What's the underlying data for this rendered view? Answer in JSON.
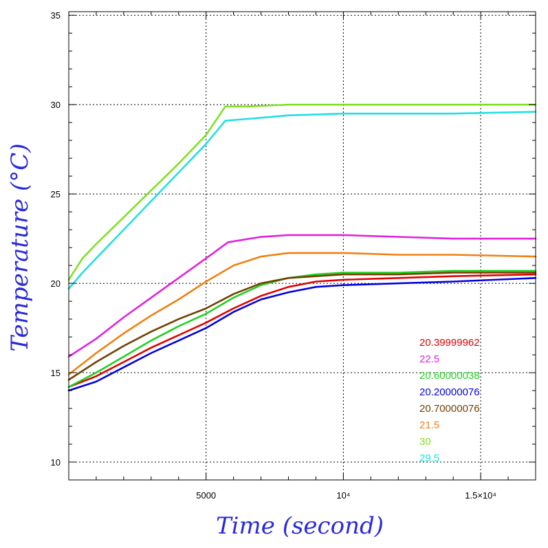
{
  "chart_data": {
    "type": "line",
    "title": "",
    "xlabel": "Time (second)",
    "ylabel": "Temperature (°C)",
    "xlim": [
      0,
      17000
    ],
    "ylim": [
      9,
      35.2
    ],
    "grid": true,
    "legend_placement": "bottom-right",
    "x_ticks": [
      {
        "value": 5000,
        "label": "5000"
      },
      {
        "value": 10000,
        "label": "10⁴"
      },
      {
        "value": 15000,
        "label": "1.5×10⁴"
      }
    ],
    "y_ticks": [
      {
        "value": 10,
        "label": "10"
      },
      {
        "value": 15,
        "label": "15"
      },
      {
        "value": 20,
        "label": "20"
      },
      {
        "value": 25,
        "label": "25"
      },
      {
        "value": 30,
        "label": "30"
      },
      {
        "value": 35,
        "label": "35"
      }
    ],
    "series": [
      {
        "name": "20.39999962",
        "color": "#e00000",
        "x": [
          0,
          1000,
          2000,
          3000,
          4000,
          5000,
          6000,
          7000,
          8000,
          9000,
          10000,
          12000,
          14000,
          17000
        ],
        "y": [
          14.2,
          14.8,
          15.6,
          16.4,
          17.1,
          17.8,
          18.6,
          19.3,
          19.8,
          20.1,
          20.2,
          20.3,
          20.4,
          20.5
        ]
      },
      {
        "name": "22.5",
        "color": "#e020e0",
        "x": [
          0,
          1000,
          2000,
          3000,
          4000,
          5000,
          5800,
          7000,
          8000,
          10000,
          12000,
          14000,
          17000
        ],
        "y": [
          15.9,
          16.9,
          18.1,
          19.2,
          20.3,
          21.4,
          22.3,
          22.6,
          22.7,
          22.7,
          22.6,
          22.5,
          22.5
        ]
      },
      {
        "name": "20.60000038",
        "color": "#20d020",
        "x": [
          0,
          1000,
          2000,
          3000,
          4000,
          5000,
          6000,
          7000,
          8000,
          9000,
          10000,
          12000,
          14000,
          17000
        ],
        "y": [
          14.2,
          15.0,
          15.9,
          16.8,
          17.6,
          18.3,
          19.2,
          19.9,
          20.3,
          20.5,
          20.6,
          20.6,
          20.7,
          20.7
        ]
      },
      {
        "name": "20.20000076",
        "color": "#0000e0",
        "x": [
          0,
          1000,
          2000,
          3000,
          4000,
          5000,
          6000,
          7000,
          8000,
          9000,
          10000,
          12000,
          14000,
          17000
        ],
        "y": [
          14.0,
          14.5,
          15.3,
          16.1,
          16.8,
          17.5,
          18.4,
          19.1,
          19.5,
          19.8,
          19.9,
          20.0,
          20.1,
          20.3
        ]
      },
      {
        "name": "20.70000076",
        "color": "#704000",
        "x": [
          0,
          1000,
          2000,
          3000,
          4000,
          5000,
          6000,
          7000,
          8000,
          9000,
          10000,
          12000,
          14000,
          17000
        ],
        "y": [
          14.6,
          15.6,
          16.5,
          17.3,
          18.0,
          18.6,
          19.4,
          20.0,
          20.3,
          20.4,
          20.5,
          20.5,
          20.6,
          20.6
        ]
      },
      {
        "name": "21.5",
        "color": "#f08010",
        "x": [
          0,
          1000,
          2000,
          3000,
          4000,
          5000,
          6000,
          7000,
          8000,
          9000,
          10000,
          12000,
          14000,
          17000
        ],
        "y": [
          14.9,
          16.1,
          17.2,
          18.2,
          19.1,
          20.1,
          21.0,
          21.5,
          21.7,
          21.7,
          21.7,
          21.6,
          21.6,
          21.5
        ]
      },
      {
        "name": "30",
        "color": "#80e020",
        "x": [
          0,
          500,
          1000,
          2000,
          3000,
          4000,
          5000,
          5700,
          6500,
          8000,
          10000,
          12000,
          14000,
          17000
        ],
        "y": [
          20.2,
          21.4,
          22.2,
          23.7,
          25.2,
          26.7,
          28.3,
          29.9,
          29.9,
          30.0,
          30.0,
          30.0,
          30.0,
          30.0
        ]
      },
      {
        "name": "29.5",
        "color": "#20e0e0",
        "x": [
          0,
          500,
          1000,
          2000,
          3000,
          4000,
          5000,
          5700,
          6500,
          8000,
          10000,
          12000,
          14000,
          17000
        ],
        "y": [
          19.7,
          20.6,
          21.4,
          23.0,
          24.6,
          26.2,
          27.8,
          29.1,
          29.2,
          29.4,
          29.5,
          29.5,
          29.5,
          29.6
        ]
      }
    ]
  }
}
